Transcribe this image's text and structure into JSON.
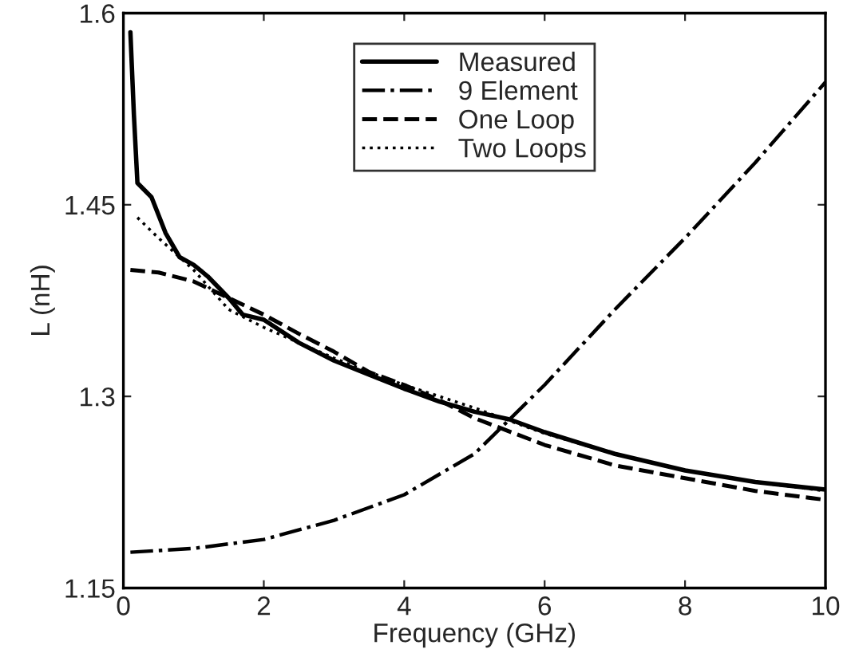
{
  "chart_data": {
    "type": "line",
    "xlabel": "Frequency (GHz)",
    "ylabel": "L (nH)",
    "xlim": [
      0,
      10
    ],
    "ylim": [
      1.15,
      1.6
    ],
    "xticks": [
      0,
      2,
      4,
      6,
      8,
      10
    ],
    "yticks": [
      1.15,
      1.3,
      1.45,
      1.6
    ],
    "grid": false,
    "legend": "top",
    "marker": "none",
    "series": [
      {
        "name": "Measured",
        "color": "#000000",
        "line_style": "solid",
        "x": [
          0.1,
          0.15,
          0.2,
          0.4,
          0.6,
          0.8,
          1.0,
          1.2,
          1.5,
          1.7,
          2,
          2.5,
          3,
          3.5,
          4,
          4.5,
          5,
          5.5,
          6,
          7,
          8,
          9,
          10
        ],
        "values": [
          1.585,
          1.52,
          1.467,
          1.456,
          1.428,
          1.409,
          1.403,
          1.394,
          1.377,
          1.364,
          1.36,
          1.342,
          1.328,
          1.317,
          1.306,
          1.296,
          1.288,
          1.282,
          1.272,
          1.255,
          1.242,
          1.233,
          1.227
        ]
      },
      {
        "name": "9 Element",
        "color": "#000000",
        "line_style": "dashdot",
        "x": [
          0.1,
          1,
          2,
          3,
          4,
          5,
          6,
          7,
          8,
          9,
          10
        ],
        "values": [
          1.178,
          1.181,
          1.188,
          1.203,
          1.223,
          1.255,
          1.309,
          1.368,
          1.424,
          1.483,
          1.546
        ]
      },
      {
        "name": "One Loop",
        "color": "#000000",
        "line_style": "dashed",
        "x": [
          0.1,
          0.5,
          1,
          1.5,
          2,
          2.5,
          3,
          3.5,
          4,
          4.5,
          5,
          6,
          7,
          8,
          9,
          10
        ],
        "values": [
          1.399,
          1.397,
          1.39,
          1.377,
          1.364,
          1.349,
          1.335,
          1.319,
          1.309,
          1.297,
          1.283,
          1.262,
          1.246,
          1.236,
          1.226,
          1.219
        ]
      },
      {
        "name": "Two Loops",
        "color": "#000000",
        "line_style": "dotted",
        "x": [
          0.2,
          0.5,
          1,
          1.5,
          2,
          2.5,
          3,
          3.5,
          4,
          5,
          6,
          7,
          8,
          9,
          10
        ],
        "values": [
          1.44,
          1.424,
          1.399,
          1.368,
          1.354,
          1.342,
          1.33,
          1.319,
          1.309,
          1.291,
          1.271,
          1.255,
          1.242,
          1.233,
          1.226
        ]
      }
    ]
  }
}
